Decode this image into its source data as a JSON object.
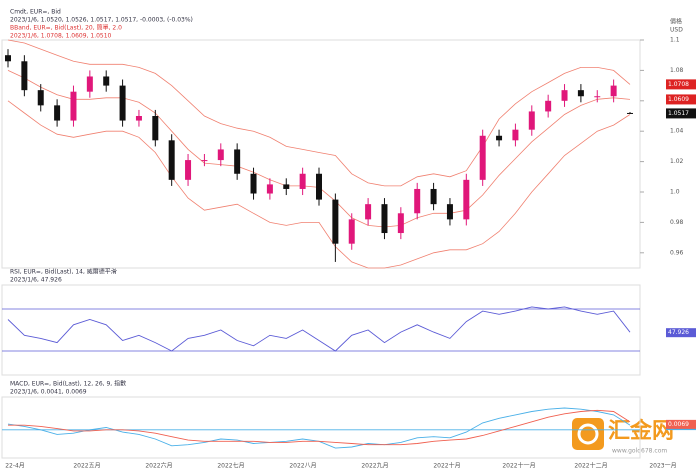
{
  "chart_data": [
    {
      "type": "candlestick",
      "title": "Cmdt, EUR=, Bid",
      "subtitle": "2023/1/6, 1.0520, 1.0526, 1.0517, 1.0517, -0.0003, (-0.03%)",
      "band_title": "BBand, EUR=, Bid(Last), 20, 簡單, 2.0",
      "band_subtitle": "2023/1/6, 1.0708, 1.0609, 1.0510",
      "axis_label": "價格",
      "axis_unit": "USD",
      "open": [
        1.09,
        1.086,
        1.067,
        1.057,
        1.047,
        1.066,
        1.076,
        1.07,
        1.047,
        1.05,
        1.034,
        1.008,
        1.021,
        1.021,
        1.028,
        1.012,
        0.999,
        1.005,
        1.002,
        1.012,
        0.995,
        0.966,
        0.982,
        0.992,
        0.973,
        0.986,
        1.002,
        0.992,
        0.982,
        1.008,
        1.037,
        1.034,
        1.041,
        1.053,
        1.06,
        1.067,
        1.063,
        1.063,
        1.052
      ],
      "high": [
        1.094,
        1.09,
        1.071,
        1.061,
        1.07,
        1.08,
        1.08,
        1.074,
        1.054,
        1.054,
        1.038,
        1.025,
        1.025,
        1.032,
        1.032,
        1.016,
        1.009,
        1.009,
        1.016,
        1.016,
        0.999,
        0.986,
        0.996,
        0.996,
        0.99,
        1.006,
        1.006,
        0.996,
        1.012,
        1.041,
        1.041,
        1.045,
        1.057,
        1.064,
        1.071,
        1.071,
        1.067,
        1.074,
        1.0526
      ],
      "low": [
        1.082,
        1.063,
        1.053,
        1.043,
        1.043,
        1.062,
        1.066,
        1.043,
        1.043,
        1.03,
        1.004,
        1.004,
        1.017,
        1.017,
        1.008,
        0.995,
        0.995,
        0.998,
        0.998,
        0.991,
        0.954,
        0.962,
        0.978,
        0.969,
        0.969,
        0.982,
        0.988,
        0.978,
        0.978,
        1.004,
        1.03,
        1.03,
        1.037,
        1.049,
        1.056,
        1.059,
        1.059,
        1.059,
        1.0517
      ],
      "close": [
        1.086,
        1.067,
        1.057,
        1.047,
        1.066,
        1.076,
        1.07,
        1.047,
        1.05,
        1.034,
        1.008,
        1.021,
        1.021,
        1.028,
        1.012,
        0.999,
        1.005,
        1.002,
        1.012,
        0.995,
        0.966,
        0.982,
        0.992,
        0.973,
        0.986,
        1.002,
        0.992,
        0.982,
        1.008,
        1.037,
        1.034,
        1.041,
        1.053,
        1.06,
        1.067,
        1.063,
        1.063,
        1.07,
        1.0517
      ],
      "up_color": "#e0177a",
      "down_color": "#111111",
      "bands": [
        {
          "name": "upper",
          "color": "#f08070",
          "values": [
            1.1,
            1.098,
            1.094,
            1.09,
            1.086,
            1.084,
            1.084,
            1.084,
            1.082,
            1.078,
            1.07,
            1.06,
            1.05,
            1.045,
            1.042,
            1.04,
            1.036,
            1.03,
            1.028,
            1.026,
            1.024,
            1.012,
            1.006,
            1.004,
            1.004,
            1.01,
            1.012,
            1.01,
            1.014,
            1.03,
            1.048,
            1.058,
            1.066,
            1.072,
            1.078,
            1.082,
            1.082,
            1.08,
            1.0708
          ]
        },
        {
          "name": "mid",
          "color": "#f08070",
          "values": [
            1.08,
            1.075,
            1.069,
            1.064,
            1.061,
            1.061,
            1.062,
            1.062,
            1.059,
            1.052,
            1.04,
            1.028,
            1.019,
            1.018,
            1.017,
            1.013,
            1.008,
            1.004,
            1.004,
            1.003,
            0.994,
            0.983,
            0.978,
            0.977,
            0.978,
            0.983,
            0.986,
            0.986,
            0.988,
            0.998,
            1.011,
            1.022,
            1.033,
            1.042,
            1.051,
            1.057,
            1.061,
            1.062,
            1.0609
          ]
        },
        {
          "name": "lower",
          "color": "#f08070",
          "values": [
            1.06,
            1.052,
            1.044,
            1.038,
            1.036,
            1.038,
            1.04,
            1.04,
            1.036,
            1.026,
            1.01,
            0.996,
            0.988,
            0.99,
            0.992,
            0.986,
            0.98,
            0.978,
            0.98,
            0.98,
            0.964,
            0.954,
            0.95,
            0.95,
            0.952,
            0.956,
            0.96,
            0.962,
            0.962,
            0.966,
            0.974,
            0.986,
            1.0,
            1.012,
            1.024,
            1.032,
            1.04,
            1.044,
            1.051
          ]
        }
      ],
      "ylim": [
        0.95,
        1.1
      ],
      "yticks": [
        0.96,
        0.98,
        {
          "value": 1,
          "label": "1.0"
        },
        1.02,
        1.04,
        1.06,
        1.08,
        1.1
      ],
      "months": [
        "22-4月",
        "2022五月",
        "2022六月",
        "2022七月",
        "2022八月",
        "2022九月",
        "2022十月",
        "2022十一月",
        "2022十二月",
        "2023一月"
      ]
    },
    {
      "type": "line",
      "title": "RSI, EUR=, Bid(Last), 14, 威爾德平滑",
      "subtitle": "2023/1/6, 47.926",
      "series": [
        {
          "name": "RSI",
          "color": "#5b5bd6",
          "values": [
            60,
            45,
            42,
            38,
            55,
            60,
            55,
            40,
            45,
            38,
            30,
            42,
            45,
            50,
            40,
            35,
            45,
            42,
            50,
            40,
            30,
            45,
            50,
            38,
            48,
            55,
            48,
            42,
            58,
            68,
            65,
            68,
            72,
            70,
            72,
            68,
            65,
            68,
            47.926
          ]
        }
      ],
      "ylim": [
        10,
        90
      ],
      "levels": [
        30,
        70
      ],
      "level_color": "#5b5bd6"
    },
    {
      "type": "line",
      "title": "MACD, EUR=, Bid(Last), 12, 26, 9, 指數",
      "subtitle": "2023/1/6, 0.0041, 0.0069",
      "series": [
        {
          "name": "MACD",
          "color": "#4ab0e8",
          "values": [
            0.005,
            0.003,
            0.0,
            -0.004,
            -0.003,
            0.0,
            0.002,
            -0.002,
            -0.004,
            -0.008,
            -0.014,
            -0.013,
            -0.011,
            -0.008,
            -0.009,
            -0.012,
            -0.011,
            -0.01,
            -0.008,
            -0.01,
            -0.016,
            -0.015,
            -0.012,
            -0.013,
            -0.011,
            -0.007,
            -0.006,
            -0.007,
            -0.002,
            0.006,
            0.01,
            0.013,
            0.016,
            0.018,
            0.019,
            0.018,
            0.016,
            0.013,
            0.0041
          ]
        },
        {
          "name": "Signal",
          "color": "#f06050",
          "values": [
            0.004,
            0.004,
            0.003,
            0.001,
            -0.001,
            -0.001,
            0.0,
            0.0,
            -0.001,
            -0.003,
            -0.006,
            -0.009,
            -0.01,
            -0.01,
            -0.01,
            -0.01,
            -0.011,
            -0.011,
            -0.01,
            -0.01,
            -0.011,
            -0.012,
            -0.013,
            -0.013,
            -0.013,
            -0.012,
            -0.01,
            -0.009,
            -0.008,
            -0.005,
            -0.001,
            0.003,
            0.007,
            0.011,
            0.014,
            0.016,
            0.017,
            0.016,
            0.0069
          ]
        }
      ],
      "ylim": [
        -0.022,
        0.026
      ],
      "levels": [
        0
      ],
      "level_color": "#4ab0e8"
    }
  ],
  "watermark": {
    "brand": "汇金网",
    "url": "www.gold678.com"
  }
}
